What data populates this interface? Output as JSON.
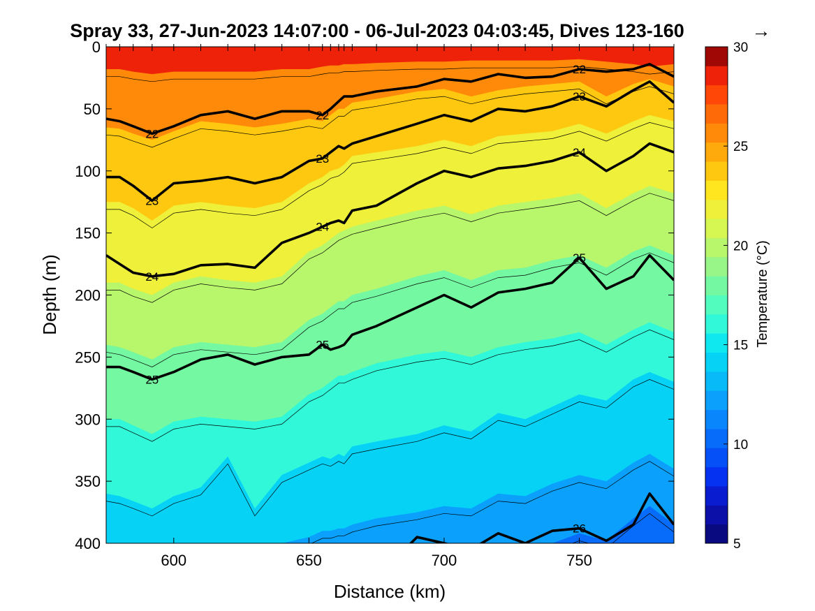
{
  "chart_data": {
    "type": "heatmap",
    "subtype": "filled contour section",
    "title": "Spray 33, 27-Jun-2023 14:07:00 - 06-Jul-2023 04:03:45, Dives 123-160",
    "title_arrow": "→",
    "xlabel": "Distance (km)",
    "ylabel": "Depth (m)",
    "xlim": [
      575,
      785
    ],
    "ylim": [
      400,
      0
    ],
    "y_reversed": true,
    "x_ticks": [
      600,
      650,
      700,
      750
    ],
    "y_ticks": [
      0,
      50,
      100,
      150,
      200,
      250,
      300,
      350,
      400
    ],
    "colorbar": {
      "label": "Temperature (°C)",
      "range": [
        5,
        30
      ],
      "ticks": [
        5,
        10,
        15,
        20,
        25,
        30
      ],
      "levels": [
        5,
        6,
        7,
        8,
        9,
        10,
        11,
        12,
        13,
        14,
        15,
        16,
        17,
        18,
        19,
        20,
        21,
        22,
        23,
        24,
        25,
        26,
        27,
        28,
        29,
        30
      ],
      "colors": [
        "#0a0a80",
        "#0c10a8",
        "#0a1cd0",
        "#0432f0",
        "#0650f8",
        "#086cfa",
        "#0a86fc",
        "#0aa0fc",
        "#08baf8",
        "#06d2f6",
        "#10e8f0",
        "#30f8d8",
        "#52fcbe",
        "#74f8a2",
        "#98f688",
        "#b8f66c",
        "#d6f652",
        "#eef03a",
        "#ffe61e",
        "#ffc810",
        "#ffaa0c",
        "#ff8a0a",
        "#ff6a08",
        "#ff4808",
        "#ee2208",
        "#a00806"
      ]
    },
    "grid": false,
    "x": [
      575,
      580,
      585,
      592,
      600,
      610,
      620,
      630,
      640,
      650,
      655,
      658,
      661,
      663,
      666,
      675,
      690,
      700,
      710,
      720,
      730,
      740,
      750,
      760,
      770,
      776,
      785
    ],
    "temperature_depths": [
      {
        "temp": 28,
        "depth": [
          18,
          18,
          20,
          22,
          20,
          20,
          20,
          20,
          18,
          18,
          16,
          15,
          15,
          14,
          14,
          13,
          12,
          12,
          11,
          11,
          11,
          11,
          10,
          12,
          14,
          16,
          14
        ]
      },
      {
        "temp": 26,
        "depth": [
          65,
          66,
          70,
          75,
          68,
          60,
          62,
          65,
          62,
          58,
          60,
          55,
          50,
          50,
          45,
          42,
          36,
          34,
          40,
          35,
          32,
          30,
          28,
          40,
          30,
          26,
          32
        ]
      },
      {
        "temp": 24,
        "depth": [
          125,
          125,
          130,
          140,
          128,
          125,
          128,
          130,
          125,
          110,
          105,
          100,
          98,
          95,
          88,
          85,
          80,
          75,
          80,
          72,
          70,
          68,
          62,
          70,
          60,
          55,
          60
        ]
      },
      {
        "temp": 22,
        "depth": [
          190,
          190,
          195,
          200,
          190,
          185,
          188,
          190,
          185,
          165,
          160,
          155,
          150,
          148,
          145,
          140,
          132,
          128,
          135,
          128,
          125,
          122,
          118,
          130,
          118,
          112,
          118
        ]
      },
      {
        "temp": 20,
        "depth": [
          240,
          242,
          246,
          252,
          242,
          238,
          240,
          242,
          238,
          220,
          215,
          210,
          205,
          205,
          200,
          195,
          185,
          180,
          188,
          180,
          178,
          172,
          168,
          178,
          165,
          160,
          168
        ]
      },
      {
        "temp": 18,
        "depth": [
          300,
          300,
          305,
          312,
          302,
          298,
          300,
          302,
          298,
          280,
          275,
          270,
          265,
          265,
          262,
          255,
          248,
          245,
          250,
          242,
          238,
          235,
          230,
          240,
          228,
          222,
          230
        ]
      },
      {
        "temp": 16,
        "depth": [
          360,
          362,
          366,
          372,
          362,
          355,
          330,
          372,
          345,
          335,
          330,
          332,
          328,
          330,
          322,
          318,
          312,
          305,
          310,
          295,
          300,
          290,
          280,
          285,
          268,
          262,
          270
        ]
      },
      {
        "temp": 14,
        "depth": [
          420,
          420,
          420,
          420,
          415,
          410,
          400,
          410,
          400,
          395,
          390,
          390,
          388,
          388,
          385,
          380,
          375,
          370,
          372,
          360,
          362,
          352,
          345,
          350,
          335,
          328,
          340
        ]
      },
      {
        "temp": 12,
        "depth": [
          460,
          460,
          460,
          460,
          460,
          460,
          460,
          460,
          460,
          455,
          450,
          450,
          448,
          448,
          445,
          440,
          430,
          420,
          420,
          410,
          410,
          400,
          392,
          398,
          380,
          370,
          385
        ]
      }
    ],
    "density_contours": [
      {
        "label": "22",
        "depth": [
          58,
          60,
          64,
          70,
          64,
          55,
          52,
          58,
          52,
          52,
          55,
          50,
          44,
          40,
          40,
          36,
          32,
          26,
          28,
          22,
          25,
          24,
          18,
          20,
          18,
          14,
          24
        ]
      },
      {
        "label": "23",
        "depth": [
          105,
          105,
          112,
          124,
          110,
          108,
          105,
          110,
          105,
          92,
          90,
          85,
          80,
          82,
          78,
          72,
          62,
          55,
          60,
          50,
          52,
          48,
          40,
          48,
          35,
          28,
          45
        ]
      },
      {
        "label": "24",
        "depth": [
          168,
          175,
          182,
          185,
          183,
          176,
          175,
          178,
          158,
          150,
          145,
          142,
          140,
          142,
          132,
          128,
          110,
          100,
          105,
          98,
          96,
          92,
          85,
          100,
          88,
          78,
          85
        ]
      },
      {
        "label": "25",
        "depth": [
          258,
          258,
          262,
          268,
          262,
          252,
          248,
          256,
          250,
          248,
          240,
          244,
          242,
          240,
          232,
          225,
          210,
          200,
          210,
          198,
          195,
          190,
          170,
          195,
          185,
          168,
          188
        ]
      },
      {
        "label": "26",
        "depth": [
          430,
          430,
          430,
          430,
          430,
          430,
          430,
          430,
          430,
          430,
          430,
          430,
          430,
          430,
          430,
          428,
          395,
          400,
          405,
          392,
          400,
          390,
          388,
          398,
          385,
          360,
          385
        ]
      }
    ]
  }
}
